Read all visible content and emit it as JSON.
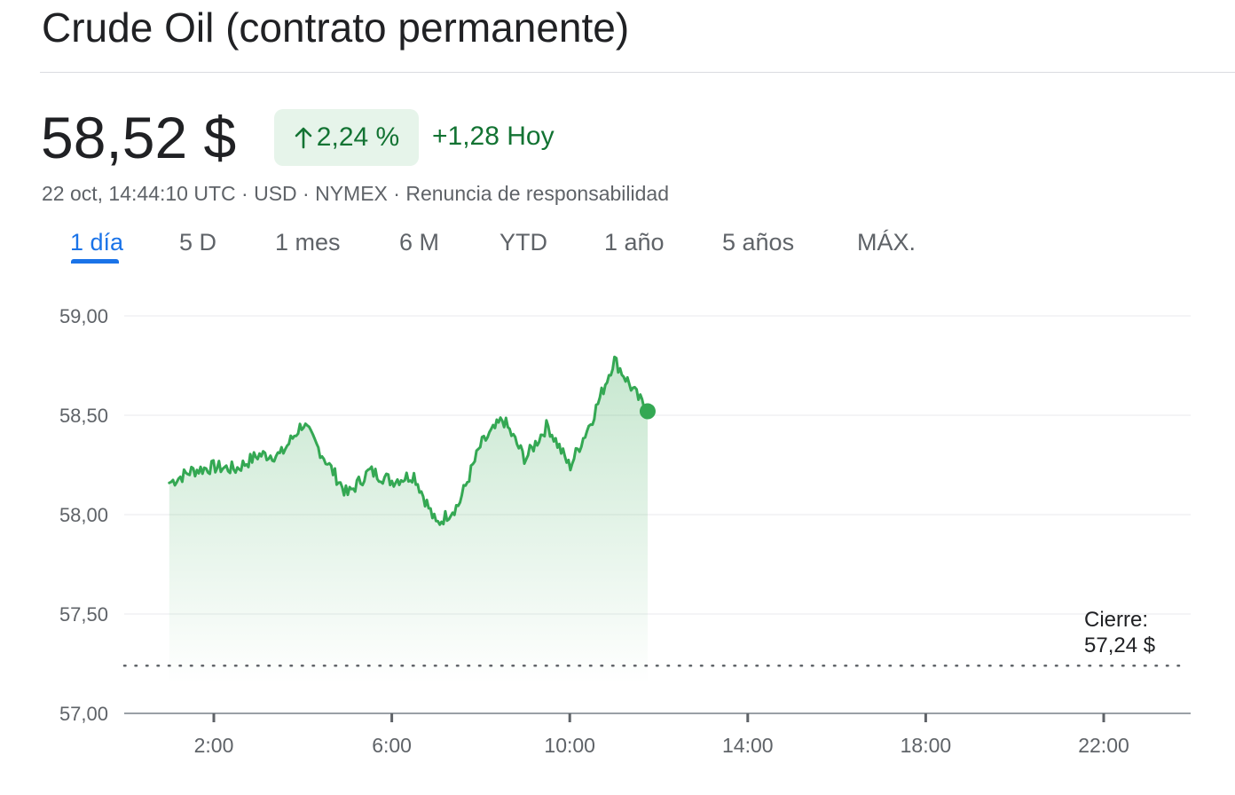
{
  "header": {
    "title": "Crude Oil (contrato permanente)"
  },
  "quote": {
    "price": "58,52 $",
    "change_percent": "2,24 %",
    "change_value": "+1,28 Hoy",
    "meta_time": "22 oct, 14:44:10 UTC",
    "meta_currency": "USD",
    "meta_exchange": "NYMEX",
    "meta_disclaimer": "Renuncia de responsabilidad",
    "separator": " · ",
    "positive_color": "#137333",
    "positive_bg": "#e6f4ea",
    "arrow_icon": "arrow-up-icon"
  },
  "tabs": [
    {
      "label": "1 día",
      "active": true
    },
    {
      "label": "5 D",
      "active": false
    },
    {
      "label": "1 mes",
      "active": false
    },
    {
      "label": "6 M",
      "active": false
    },
    {
      "label": "YTD",
      "active": false
    },
    {
      "label": "1 año",
      "active": false
    },
    {
      "label": "5 años",
      "active": false
    },
    {
      "label": "MÁX.",
      "active": false
    }
  ],
  "chart_data": {
    "type": "area",
    "title": "",
    "xlabel": "",
    "ylabel": "",
    "x_unit": "hours UTC",
    "xlim": [
      1.0,
      24.0
    ],
    "ylim": [
      57.0,
      59.0
    ],
    "y_ticks": [
      "59,00",
      "58,50",
      "58,00",
      "57,50",
      "57,00"
    ],
    "y_tick_values": [
      59.0,
      58.5,
      58.0,
      57.5,
      57.0
    ],
    "x_ticks": [
      "2:00",
      "6:00",
      "10:00",
      "14:00",
      "18:00",
      "22:00"
    ],
    "x_tick_values": [
      2,
      6,
      10,
      14,
      18,
      22
    ],
    "grid": true,
    "line_color": "#34a853",
    "previous_close": {
      "label": "Cierre:",
      "value_label": "57,24 $",
      "value": 57.24
    },
    "series": [
      {
        "x": [
          0.0,
          0.5,
          1.0,
          1.5,
          2.0,
          2.5,
          3.0,
          3.5,
          4.0,
          4.5,
          5.0,
          5.5,
          6.0,
          6.5,
          7.0,
          7.5,
          8.0,
          8.5,
          9.0,
          9.5,
          10.0,
          10.5,
          10.75
        ],
        "y": [
          58.16,
          58.22,
          58.24,
          58.23,
          58.3,
          58.3,
          58.46,
          58.28,
          58.1,
          58.22,
          58.17,
          58.2,
          57.95,
          58.05,
          58.35,
          58.48,
          58.28,
          58.45,
          58.24,
          58.48,
          58.78,
          58.6,
          58.52
        ],
        "offset_hours": 1.0
      }
    ],
    "current_point": {
      "x": 10.75,
      "y": 58.52
    }
  }
}
